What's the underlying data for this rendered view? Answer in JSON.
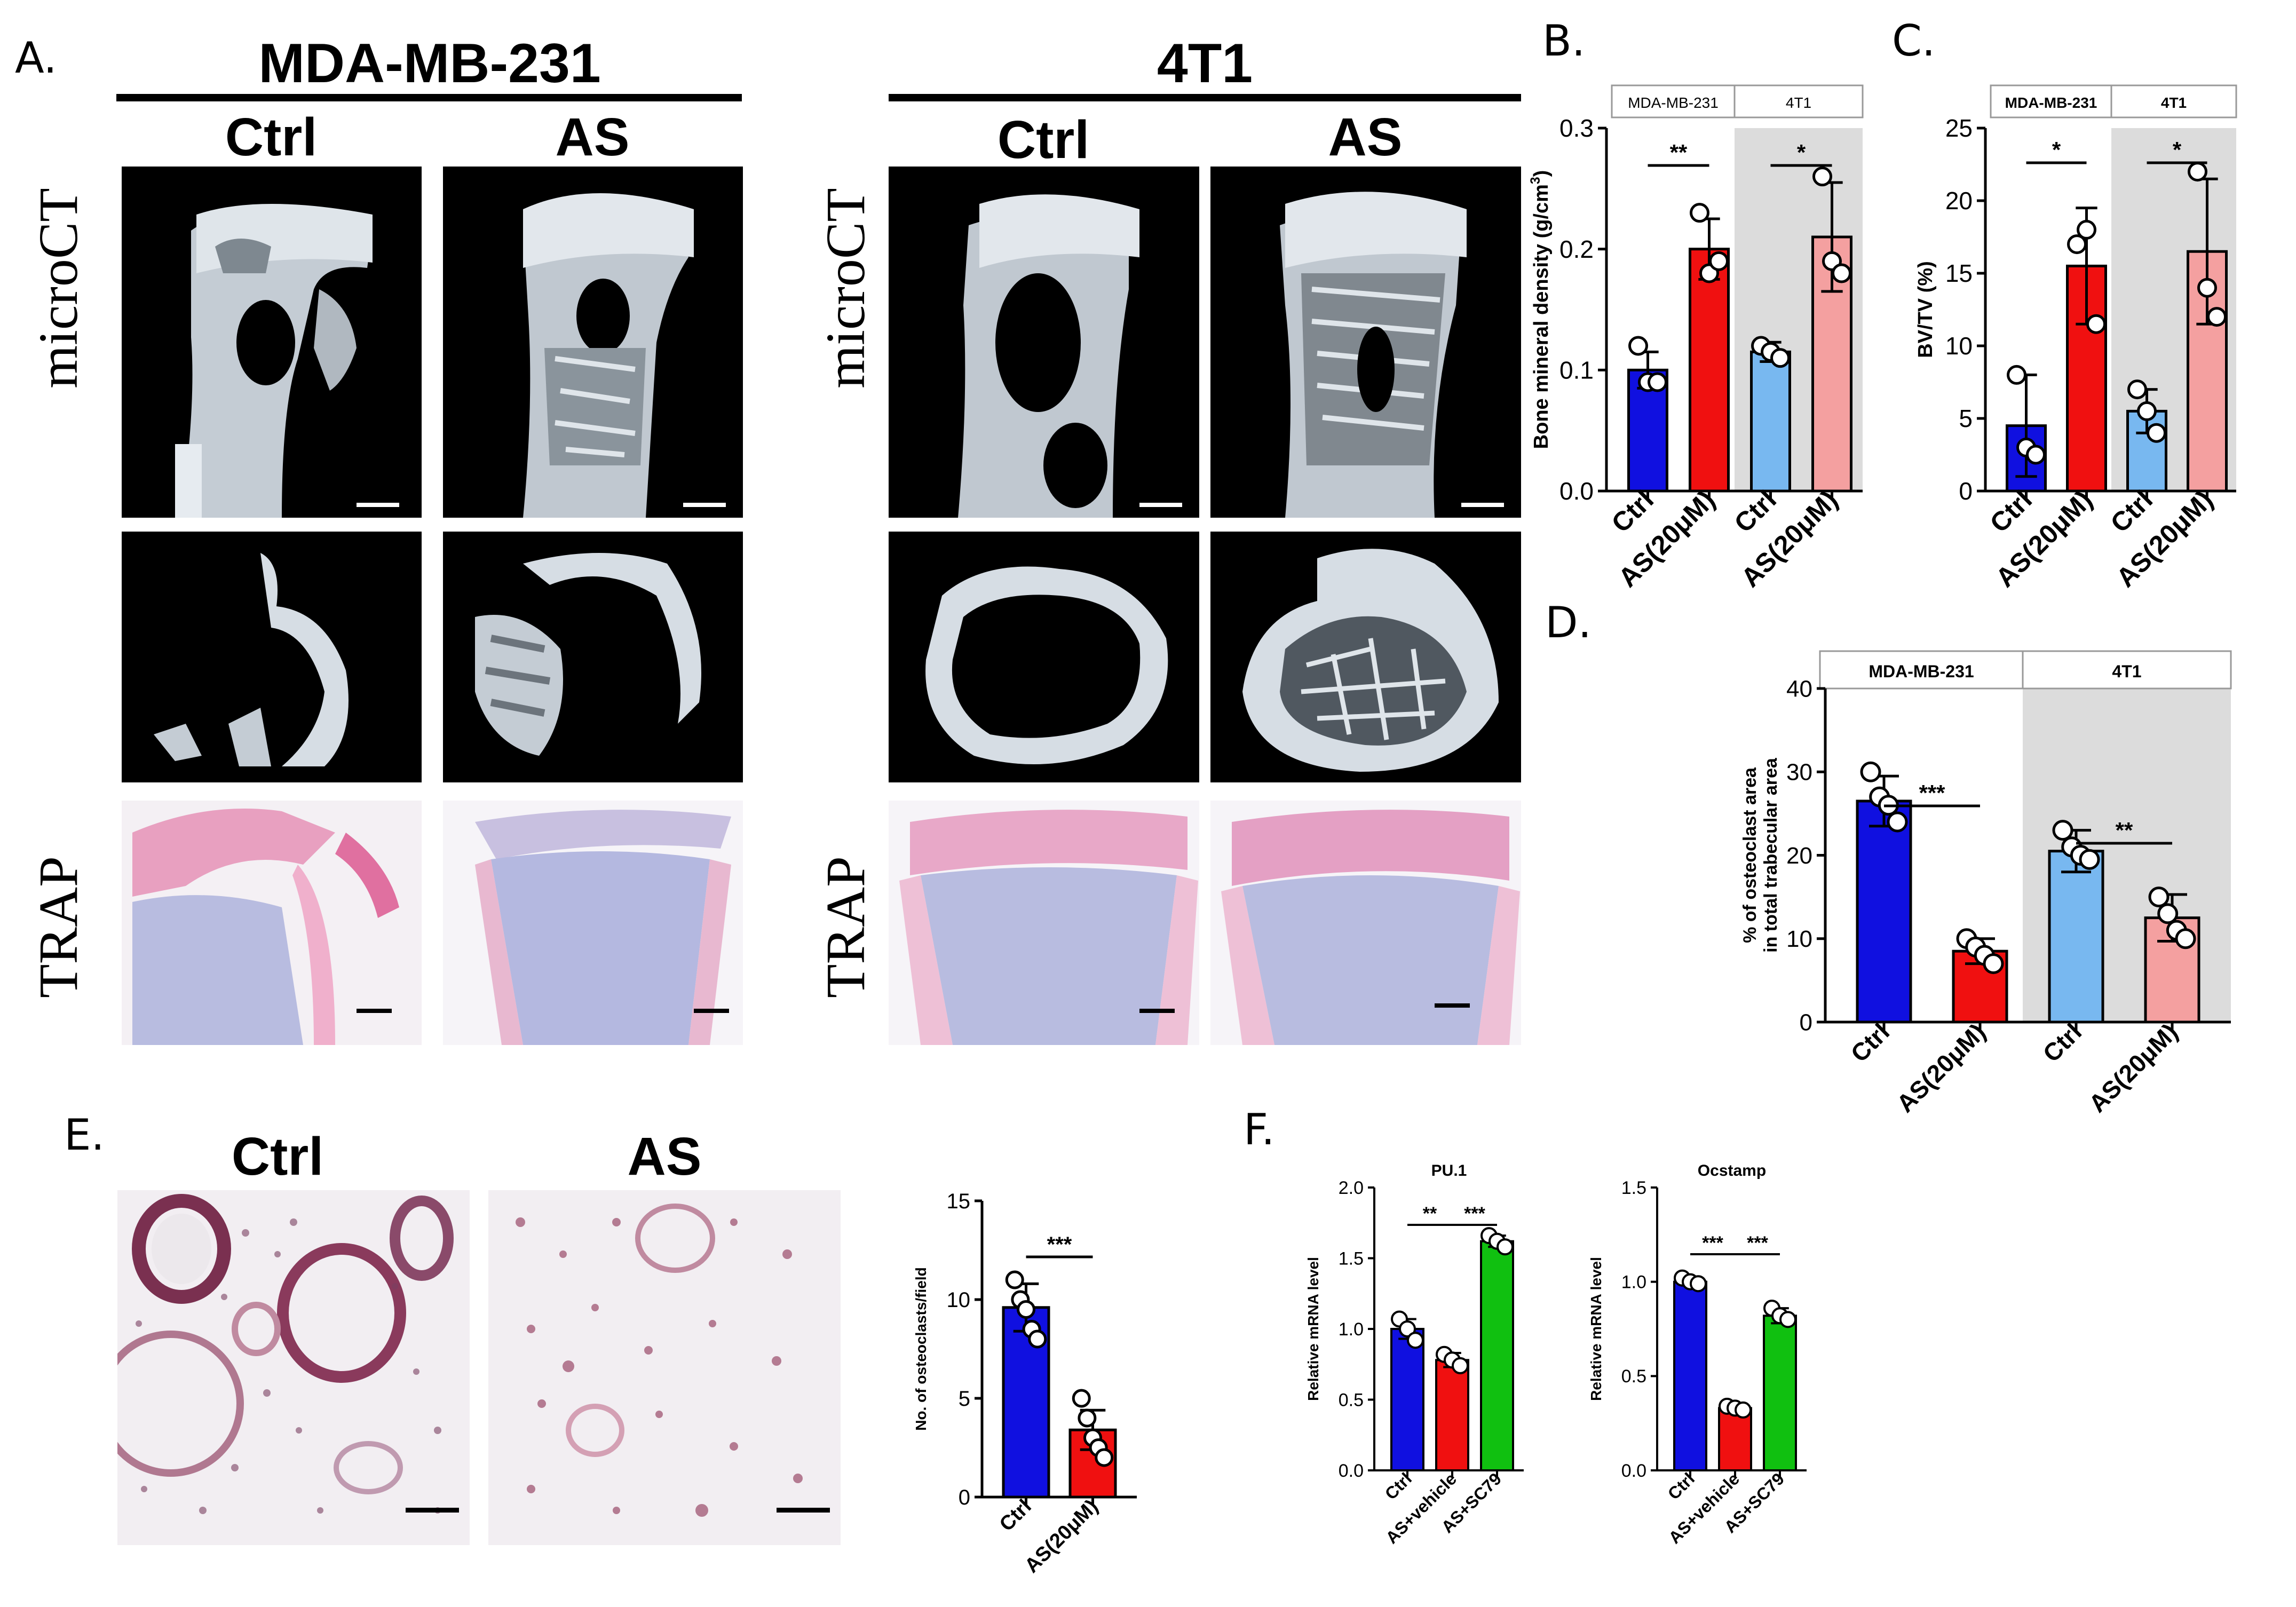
{
  "panels": {
    "A": {
      "letter": "A.",
      "groups": [
        {
          "title": "MDA-MB-231",
          "conditions": [
            "Ctrl",
            "AS"
          ]
        },
        {
          "title": "4T1",
          "conditions": [
            "Ctrl",
            "AS"
          ]
        }
      ],
      "row_labels": [
        "microCT",
        "TRAP"
      ]
    },
    "B": {
      "letter": "B."
    },
    "C": {
      "letter": "C."
    },
    "D": {
      "letter": "D."
    },
    "E": {
      "letter": "E.",
      "conditions": [
        "Ctrl",
        "AS"
      ]
    },
    "F": {
      "letter": "F."
    }
  },
  "colors": {
    "blue": "#1010e0",
    "red": "#f01010",
    "lightblue": "#78b8f0",
    "pink": "#f4a0a0",
    "green": "#10c010",
    "shade": "#dcdcdc",
    "bone": "#d6dde4",
    "trap_bg": "#bcc0e0",
    "trap_stain": "#e0508a"
  },
  "chart_data": [
    {
      "id": "B",
      "type": "bar",
      "ylabel": "Bone mineral density (g/cm",
      "ylabel_sup": "3",
      "ylabel_end": ")",
      "ylim": [
        0,
        0.3
      ],
      "yticks": [
        "0.0",
        "0.1",
        "0.2",
        "0.3"
      ],
      "categories": [
        "Ctrl",
        "AS(20μM)",
        "Ctrl",
        "AS(20μM)"
      ],
      "groups": [
        "MDA-MB-231",
        "4T1"
      ],
      "values": [
        0.1,
        0.2,
        0.115,
        0.21
      ],
      "err": [
        0.015,
        0.025,
        0.008,
        0.045
      ],
      "points": [
        [
          0.12,
          0.09,
          0.09
        ],
        [
          0.23,
          0.18,
          0.19
        ],
        [
          0.12,
          0.115,
          0.11
        ],
        [
          0.26,
          0.19,
          0.18
        ]
      ],
      "colors": [
        "#1010e0",
        "#f01010",
        "#78b8f0",
        "#f4a0a0"
      ],
      "sig": [
        {
          "from": 0,
          "to": 1,
          "label": "**"
        },
        {
          "from": 2,
          "to": 3,
          "label": "*"
        }
      ]
    },
    {
      "id": "C",
      "type": "bar",
      "ylabel": "BV/TV (%)",
      "ylim": [
        0,
        25
      ],
      "yticks": [
        "0",
        "5",
        "10",
        "15",
        "20",
        "25"
      ],
      "categories": [
        "Ctrl",
        "AS(20μM)",
        "Ctrl",
        "AS(20μM)"
      ],
      "groups": [
        "MDA-MB-231",
        "4T1"
      ],
      "values": [
        4.5,
        15.5,
        5.5,
        16.5
      ],
      "err": [
        3.5,
        4.0,
        1.5,
        5.0
      ],
      "points": [
        [
          8,
          3,
          2.5
        ],
        [
          17,
          18,
          11.5
        ],
        [
          7,
          5.5,
          4
        ],
        [
          22,
          14,
          12
        ]
      ],
      "colors": [
        "#1010e0",
        "#f01010",
        "#78b8f0",
        "#f4a0a0"
      ],
      "sig": [
        {
          "from": 0,
          "to": 1,
          "label": "*"
        },
        {
          "from": 2,
          "to": 3,
          "label": "*"
        }
      ]
    },
    {
      "id": "D",
      "type": "bar",
      "ylabel": "% of osteoclast area",
      "ylabel2": "in total trabecular area",
      "ylim": [
        0,
        40
      ],
      "yticks": [
        "0",
        "10",
        "20",
        "30",
        "40"
      ],
      "categories": [
        "Ctrl",
        "AS(20μM)",
        "Ctrl",
        "AS(20μM)"
      ],
      "groups": [
        "MDA-MB-231",
        "4T1"
      ],
      "values": [
        26.5,
        8.5,
        20.5,
        12.5
      ],
      "err": [
        3.0,
        1.5,
        2.5,
        2.8
      ],
      "points": [
        [
          30,
          27,
          26,
          24
        ],
        [
          10,
          9,
          8,
          7
        ],
        [
          23,
          21,
          20,
          19.5
        ],
        [
          15,
          13,
          11,
          10
        ]
      ],
      "colors": [
        "#1010e0",
        "#f01010",
        "#78b8f0",
        "#f4a0a0"
      ],
      "sig": [
        {
          "from": 0,
          "to": 1,
          "label": "***"
        },
        {
          "from": 2,
          "to": 3,
          "label": "**"
        }
      ]
    },
    {
      "id": "E",
      "type": "bar",
      "ylabel": "No. of osteoclasts/field",
      "ylim": [
        0,
        15
      ],
      "yticks": [
        "0",
        "5",
        "10",
        "15"
      ],
      "categories": [
        "Ctrl",
        "AS(20μM)"
      ],
      "values": [
        9.6,
        3.4
      ],
      "err": [
        1.2,
        1.0
      ],
      "points": [
        [
          11,
          10,
          9.5,
          8.5,
          8
        ],
        [
          5,
          4,
          3,
          2.5,
          2
        ]
      ],
      "colors": [
        "#1010e0",
        "#f01010"
      ],
      "sig": [
        {
          "from": 0,
          "to": 1,
          "label": "***"
        }
      ]
    },
    {
      "id": "F1",
      "type": "bar",
      "title": "PU.1",
      "ylabel": "Relative mRNA level",
      "ylim": [
        0,
        2.0
      ],
      "yticks": [
        "0.0",
        "0.5",
        "1.0",
        "1.5",
        "2.0"
      ],
      "categories": [
        "Ctrl",
        "AS+vehicle",
        "AS+SC79"
      ],
      "values": [
        1.0,
        0.78,
        1.62
      ],
      "err": [
        0.07,
        0.05,
        0.04
      ],
      "points": [
        [
          1.07,
          1.0,
          0.92
        ],
        [
          0.82,
          0.78,
          0.74
        ],
        [
          1.66,
          1.62,
          1.58
        ]
      ],
      "colors": [
        "#1010e0",
        "#f01010",
        "#10c010"
      ],
      "sig": [
        {
          "from": 0,
          "to": 1,
          "label": "**"
        },
        {
          "from": 1,
          "to": 2,
          "label": "***"
        }
      ]
    },
    {
      "id": "F2",
      "type": "bar",
      "title": "Ocstamp",
      "ylabel": "Relative mRNA level",
      "ylim": [
        0,
        1.5
      ],
      "yticks": [
        "0.0",
        "0.5",
        "1.0",
        "1.5"
      ],
      "categories": [
        "Ctrl",
        "AS+vehicle",
        "AS+SC79"
      ],
      "values": [
        1.0,
        0.33,
        0.82
      ],
      "err": [
        0.02,
        0.02,
        0.04
      ],
      "points": [
        [
          1.02,
          1.0,
          0.99
        ],
        [
          0.34,
          0.33,
          0.32
        ],
        [
          0.86,
          0.82,
          0.8
        ]
      ],
      "colors": [
        "#1010e0",
        "#f01010",
        "#10c010"
      ],
      "sig": [
        {
          "from": 0,
          "to": 1,
          "label": "***"
        },
        {
          "from": 1,
          "to": 2,
          "label": "***"
        }
      ]
    }
  ]
}
